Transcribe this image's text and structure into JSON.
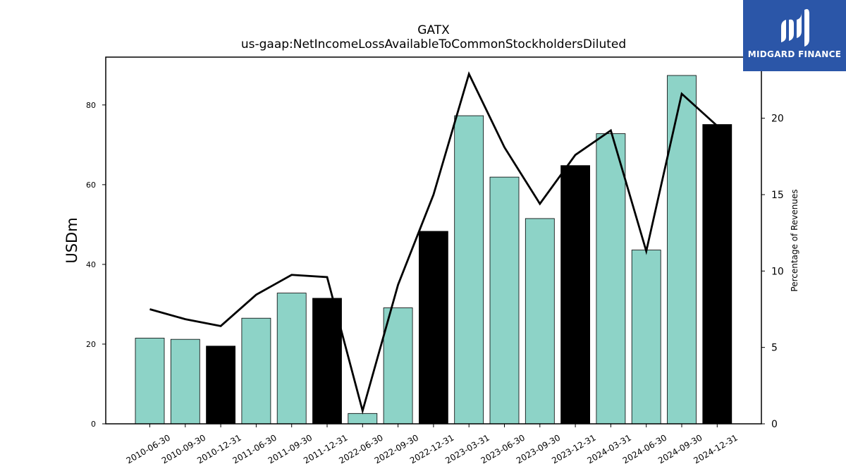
{
  "chart_data": {
    "type": "bar",
    "title": "GATX",
    "subtitle": "us-gaap:NetIncomeLossAvailableToCommonStockholdersDiluted",
    "ylabel": "USDm",
    "y2label": "Percentage of Revenues",
    "ylim": [
      0,
      92
    ],
    "y2lim": [
      0,
      24
    ],
    "yticks": [
      0,
      20,
      40,
      60,
      80
    ],
    "y2ticks": [
      0,
      5,
      10,
      15,
      20
    ],
    "categories": [
      "2010-06-30",
      "2010-09-30",
      "2010-12-31",
      "2011-06-30",
      "2011-09-30",
      "2011-12-31",
      "2022-06-30",
      "2022-09-30",
      "2022-12-31",
      "2023-03-31",
      "2023-06-30",
      "2023-09-30",
      "2023-12-31",
      "2024-03-31",
      "2024-06-30",
      "2024-09-30",
      "2024-12-31"
    ],
    "values": [
      21.5,
      21.2,
      19.5,
      26.5,
      32.8,
      31.5,
      2.6,
      29.1,
      48.3,
      77.3,
      61.9,
      51.5,
      64.8,
      72.8,
      43.6,
      87.4,
      75.1
    ],
    "bar_colors": [
      "#8dd3c7",
      "#8dd3c7",
      "#000000",
      "#8dd3c7",
      "#8dd3c7",
      "#000000",
      "#8dd3c7",
      "#8dd3c7",
      "#000000",
      "#8dd3c7",
      "#8dd3c7",
      "#8dd3c7",
      "#000000",
      "#8dd3c7",
      "#8dd3c7",
      "#8dd3c7",
      "#000000"
    ],
    "line_values": [
      7.5,
      6.85,
      6.4,
      8.45,
      9.75,
      9.6,
      0.85,
      9.1,
      15.0,
      22.9,
      18.1,
      14.4,
      17.6,
      19.2,
      11.3,
      21.6,
      19.5
    ],
    "grid": false
  },
  "logo": {
    "text": "MIDGARD FINANCE",
    "bg_color": "#2b56a8"
  }
}
